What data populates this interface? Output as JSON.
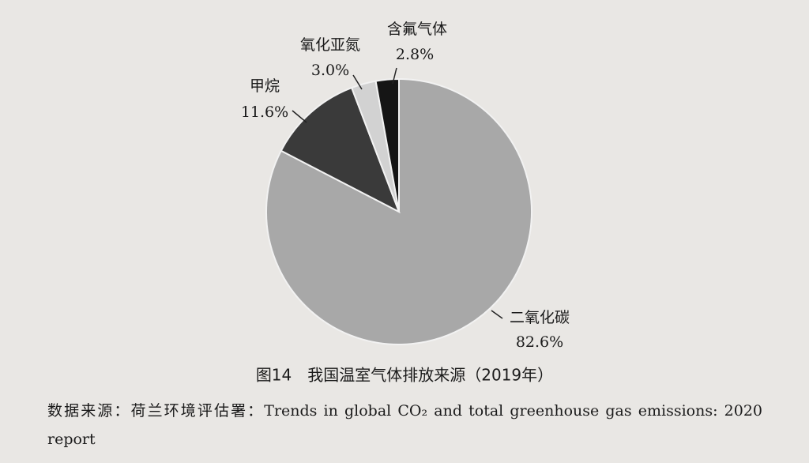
{
  "chart_data": {
    "type": "pie",
    "categories": [
      "二氧化碳",
      "甲烷",
      "氧化亚氮",
      "含氟气体"
    ],
    "values": [
      82.6,
      11.6,
      3.0,
      2.8
    ],
    "value_labels": [
      "82.6%",
      "11.6%",
      "3.0%",
      "2.8%"
    ],
    "colors": [
      "#a8a8a8",
      "#3a3a3a",
      "#d2d2d2",
      "#151515"
    ],
    "caption": "图14　我国温室气体排放来源（2019年）",
    "source": "数据来源：荷兰环境评估署：Trends in global CO₂ and total greenhouse gas emissions: 2020 report"
  }
}
